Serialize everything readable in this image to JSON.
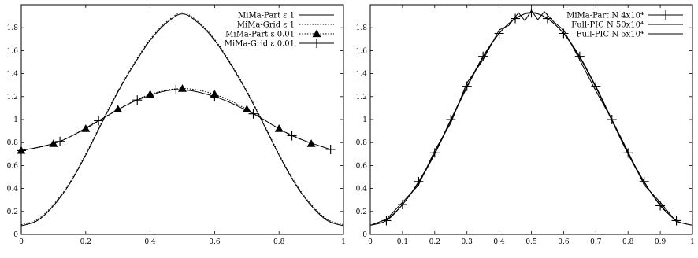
{
  "chart_data": [
    {
      "type": "line",
      "title": "",
      "xlabel": "",
      "ylabel": "",
      "xlim": [
        0,
        1
      ],
      "ylim": [
        0,
        2
      ],
      "xticks": [
        "0",
        "0.2",
        "0.4",
        "0.6",
        "0.8",
        "1"
      ],
      "yticks": [
        "0",
        "0.2",
        "0.4",
        "0.6",
        "0.8",
        "1",
        "1.2",
        "1.4",
        "1.6",
        "1.8",
        "2"
      ],
      "grid": false,
      "legend_position": "top-right",
      "series": [
        {
          "name": "MiMa-Part ε 1",
          "style": "solid",
          "marker": "none",
          "x": [
            0,
            0.05,
            0.1,
            0.15,
            0.2,
            0.25,
            0.3,
            0.35,
            0.4,
            0.45,
            0.5,
            0.55,
            0.6,
            0.65,
            0.7,
            0.75,
            0.8,
            0.85,
            0.9,
            0.95,
            1
          ],
          "y": [
            0.075,
            0.12,
            0.25,
            0.44,
            0.69,
            0.97,
            1.24,
            1.48,
            1.69,
            1.84,
            1.92,
            1.84,
            1.69,
            1.48,
            1.24,
            0.97,
            0.69,
            0.44,
            0.25,
            0.12,
            0.075
          ]
        },
        {
          "name": "MiMa-Grid ε 1",
          "style": "dotted",
          "marker": "none",
          "x": [
            0,
            0.05,
            0.1,
            0.15,
            0.2,
            0.25,
            0.3,
            0.35,
            0.4,
            0.45,
            0.5,
            0.55,
            0.6,
            0.65,
            0.7,
            0.75,
            0.8,
            0.85,
            0.9,
            0.95,
            1
          ],
          "y": [
            0.085,
            0.13,
            0.26,
            0.45,
            0.7,
            0.98,
            1.25,
            1.49,
            1.7,
            1.85,
            1.93,
            1.85,
            1.7,
            1.49,
            1.25,
            0.98,
            0.7,
            0.45,
            0.26,
            0.13,
            0.085
          ]
        },
        {
          "name": "MiMa-Part ε 0.01",
          "style": "dotted",
          "marker": "triangle",
          "x": [
            0,
            0.1,
            0.2,
            0.3,
            0.4,
            0.5,
            0.6,
            0.7,
            0.8,
            0.9
          ],
          "y": [
            0.73,
            0.79,
            0.92,
            1.09,
            1.22,
            1.27,
            1.22,
            1.09,
            0.92,
            0.79
          ]
        },
        {
          "name": "MiMa-Grid ε 0.01",
          "style": "solid",
          "marker": "plus",
          "x": [
            0,
            0.12,
            0.24,
            0.36,
            0.48,
            0.6,
            0.72,
            0.84,
            0.96
          ],
          "y": [
            0.73,
            0.81,
            0.99,
            1.17,
            1.26,
            1.2,
            1.05,
            0.86,
            0.74
          ]
        }
      ]
    },
    {
      "type": "line",
      "title": "",
      "xlabel": "",
      "ylabel": "",
      "xlim": [
        0,
        1
      ],
      "ylim": [
        0,
        2
      ],
      "xticks": [
        "0",
        "0.1",
        "0.2",
        "0.3",
        "0.4",
        "0.5",
        "0.6",
        "0.7",
        "0.8",
        "0.9",
        "1"
      ],
      "yticks": [
        "0",
        "0.2",
        "0.4",
        "0.6",
        "0.8",
        "1",
        "1.2",
        "1.4",
        "1.6",
        "1.8",
        "2"
      ],
      "grid": false,
      "legend_position": "top-right",
      "series": [
        {
          "name": "MiMa-Part N 4x10⁴",
          "style": "solid",
          "marker": "plus",
          "x": [
            0.05,
            0.1,
            0.15,
            0.2,
            0.25,
            0.3,
            0.35,
            0.4,
            0.45,
            0.5,
            0.55,
            0.6,
            0.65,
            0.7,
            0.75,
            0.8,
            0.85,
            0.9,
            0.95
          ],
          "y": [
            0.12,
            0.26,
            0.46,
            0.71,
            1.0,
            1.29,
            1.55,
            1.75,
            1.88,
            1.93,
            1.88,
            1.75,
            1.55,
            1.29,
            1.0,
            0.71,
            0.46,
            0.25,
            0.12
          ]
        },
        {
          "name": "Full-PIC N 50x10⁴",
          "style": "solid",
          "marker": "none",
          "x": [
            0,
            0.05,
            0.1,
            0.15,
            0.2,
            0.25,
            0.3,
            0.35,
            0.4,
            0.45,
            0.5,
            0.55,
            0.6,
            0.65,
            0.7,
            0.75,
            0.8,
            0.85,
            0.9,
            0.95,
            1
          ],
          "y": [
            0.08,
            0.12,
            0.26,
            0.45,
            0.7,
            0.99,
            1.28,
            1.54,
            1.75,
            1.88,
            1.93,
            1.88,
            1.75,
            1.54,
            1.28,
            0.99,
            0.7,
            0.45,
            0.26,
            0.12,
            0.08
          ]
        },
        {
          "name": "Full-PIC N 5x10⁴",
          "style": "solid",
          "marker": "none",
          "x": [
            0,
            0.05,
            0.1,
            0.15,
            0.2,
            0.25,
            0.3,
            0.35,
            0.4,
            0.43,
            0.46,
            0.48,
            0.5,
            0.52,
            0.54,
            0.57,
            0.6,
            0.65,
            0.7,
            0.75,
            0.8,
            0.85,
            0.9,
            0.95,
            1
          ],
          "y": [
            0.08,
            0.13,
            0.28,
            0.43,
            0.73,
            0.97,
            1.32,
            1.52,
            1.78,
            1.82,
            1.93,
            1.86,
            1.95,
            1.87,
            1.94,
            1.85,
            1.78,
            1.52,
            1.25,
            1.0,
            0.72,
            0.43,
            0.28,
            0.11,
            0.08
          ]
        }
      ]
    }
  ]
}
